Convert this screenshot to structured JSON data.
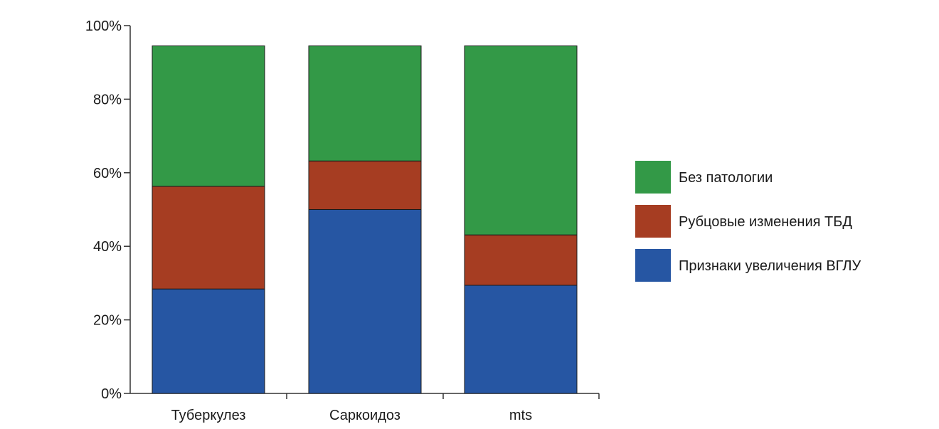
{
  "chart_data": {
    "type": "bar",
    "stacked": true,
    "title": "",
    "xlabel": "",
    "ylabel": "",
    "ylim": [
      0,
      100
    ],
    "y_ticks": [
      "0%",
      "20%",
      "40%",
      "60%",
      "80%",
      "100%"
    ],
    "y_tick_values": [
      0,
      20,
      40,
      60,
      80,
      100
    ],
    "categories": [
      "Туберкулез",
      "Саркоидоз",
      "mts"
    ],
    "series": [
      {
        "name": "Признаки увеличения ВГЛУ",
        "values": [
          28.4,
          50.0,
          29.4
        ],
        "color": "#2656a3"
      },
      {
        "name": "Рубцовые изменения ТБД",
        "values": [
          27.9,
          13.2,
          13.7
        ],
        "color": "#a63d22"
      },
      {
        "name": "Без патологии",
        "values": [
          38.2,
          31.3,
          51.4
        ],
        "color": "#339947"
      }
    ],
    "legend_order": [
      2,
      1,
      0
    ],
    "legend_position": "right",
    "grid": false
  }
}
